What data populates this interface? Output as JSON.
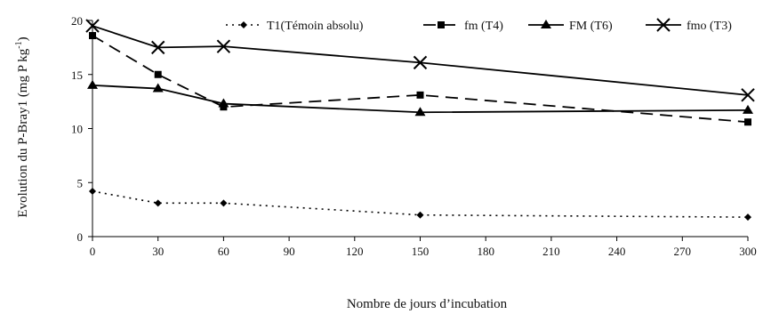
{
  "chart_data": {
    "type": "line",
    "title": "",
    "xlabel": "Nombre de jours d’incubation",
    "ylabel_main": "Evolution du P-Bray1 (mg P kg",
    "ylabel_exp": "-1",
    "ylabel_close": ")",
    "xlim": [
      0,
      300
    ],
    "ylim": [
      0,
      20
    ],
    "xticks": [
      0,
      30,
      60,
      90,
      120,
      150,
      180,
      210,
      240,
      270,
      300
    ],
    "yticks": [
      0,
      5,
      10,
      15,
      20
    ],
    "grid": false,
    "legend_position": "top",
    "series": [
      {
        "name": "T1(Témoin absolu)",
        "line": "dotted",
        "marker": "diamond",
        "x": [
          0,
          30,
          60,
          150,
          300
        ],
        "y": [
          4.2,
          3.1,
          3.1,
          2.0,
          1.8
        ]
      },
      {
        "name": "fm (T4)",
        "line": "dashed",
        "marker": "square",
        "x": [
          0,
          30,
          60,
          150,
          300
        ],
        "y": [
          18.6,
          15.0,
          12.0,
          13.1,
          10.6
        ]
      },
      {
        "name": "FM (T6)",
        "line": "solid",
        "marker": "triangle",
        "x": [
          0,
          30,
          60,
          150,
          300
        ],
        "y": [
          14.0,
          13.7,
          12.3,
          11.5,
          11.7
        ]
      },
      {
        "name": "fmo (T3)",
        "line": "solid",
        "marker": "x",
        "x": [
          0,
          30,
          60,
          150,
          300
        ],
        "y": [
          19.5,
          17.5,
          17.6,
          16.1,
          13.1
        ]
      }
    ]
  }
}
